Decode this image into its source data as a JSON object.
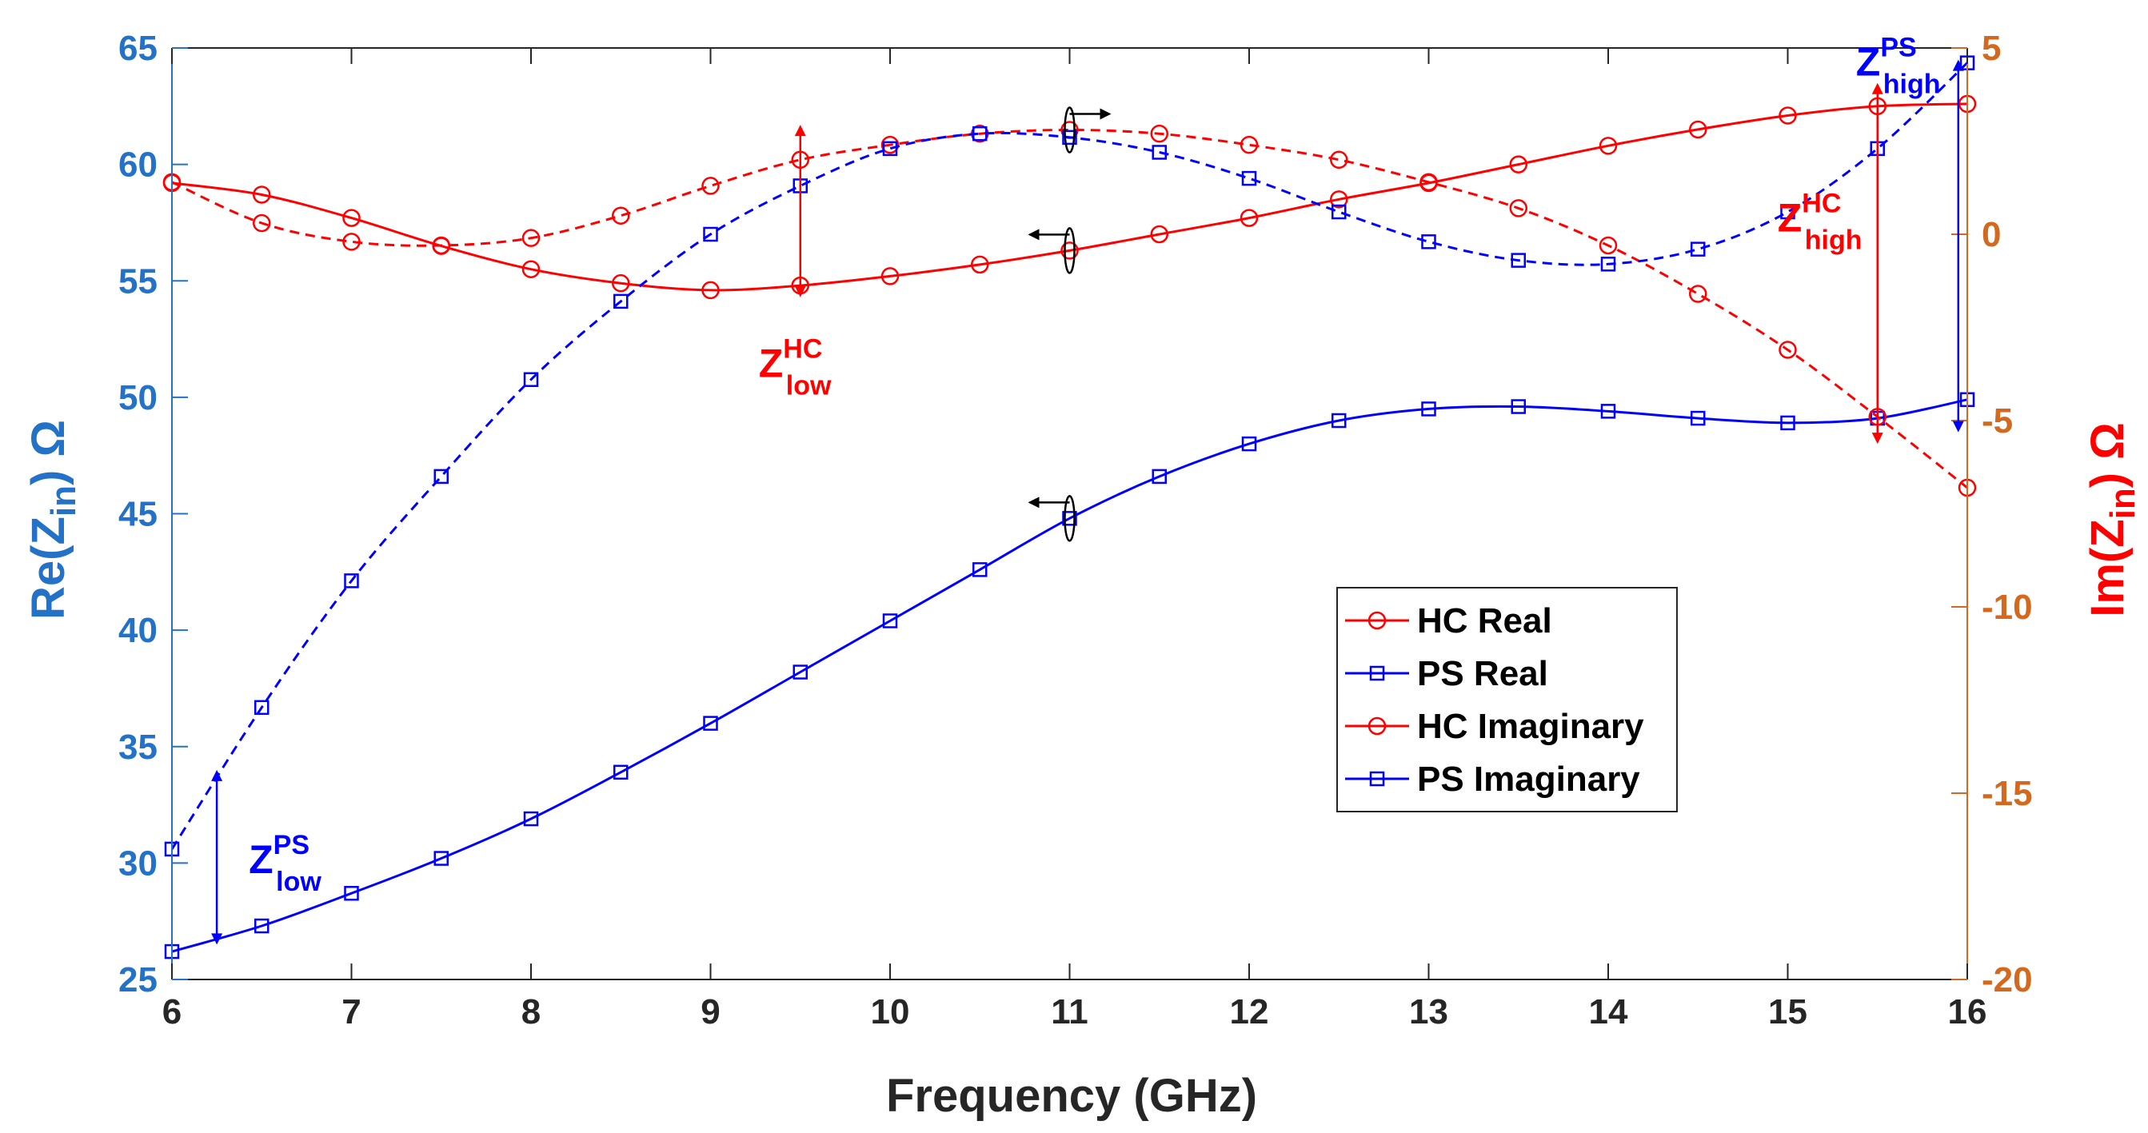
{
  "chart_data": {
    "type": "line",
    "xlabel": "Frequency (GHz)",
    "ylabel_left": {
      "base": "Re(Z",
      "sub": "in",
      "tail": ") Ω"
    },
    "ylabel_right": {
      "base": "Im(Z",
      "sub": "in",
      "tail": ") Ω"
    },
    "xlim": [
      6,
      16
    ],
    "ylim_left": [
      25,
      65
    ],
    "ylim_right": [
      -20,
      5
    ],
    "xticks": [
      6,
      7,
      8,
      9,
      10,
      11,
      12,
      13,
      14,
      15,
      16
    ],
    "yticks_left": [
      25,
      30,
      35,
      40,
      45,
      50,
      55,
      60,
      65
    ],
    "yticks_right": [
      -20,
      -15,
      -10,
      -5,
      0,
      5
    ],
    "x": [
      6,
      6.5,
      7,
      7.5,
      8,
      8.5,
      9,
      9.5,
      10,
      10.5,
      11,
      11.5,
      12,
      12.5,
      13,
      13.5,
      14,
      14.5,
      15,
      15.5,
      16
    ],
    "series": [
      {
        "name": "HC Real",
        "axis": "left",
        "color": "#ff0000",
        "marker": "circle",
        "dash": "solid",
        "values": [
          59.2,
          58.7,
          57.7,
          56.5,
          55.5,
          54.9,
          54.6,
          54.8,
          55.2,
          55.7,
          56.3,
          57.0,
          57.7,
          58.5,
          59.2,
          60.0,
          60.8,
          61.5,
          62.1,
          62.5,
          62.6
        ]
      },
      {
        "name": "PS Real",
        "axis": "left",
        "color": "#0000ff",
        "marker": "square",
        "dash": "solid",
        "values": [
          26.2,
          27.3,
          28.7,
          30.2,
          31.9,
          33.9,
          36.0,
          38.2,
          40.4,
          42.6,
          44.8,
          46.6,
          48.0,
          49.0,
          49.5,
          49.6,
          49.4,
          49.1,
          48.9,
          49.1,
          49.9
        ]
      },
      {
        "name": "HC Imaginary",
        "axis": "right",
        "color": "#ff0000",
        "marker": "circle",
        "dash": "dashed",
        "values": [
          1.4,
          0.3,
          -0.2,
          -0.3,
          -0.1,
          0.5,
          1.3,
          2.0,
          2.4,
          2.7,
          2.8,
          2.7,
          2.4,
          2.0,
          1.4,
          0.7,
          -0.3,
          -1.6,
          -3.1,
          -4.9,
          -6.8
        ]
      },
      {
        "name": "PS Imaginary",
        "axis": "right",
        "color": "#0000ff",
        "marker": "square",
        "dash": "dashed",
        "values": [
          -16.5,
          -12.7,
          -9.3,
          -6.5,
          -3.9,
          -1.8,
          0.0,
          1.3,
          2.3,
          2.7,
          2.6,
          2.2,
          1.5,
          0.6,
          -0.2,
          -0.7,
          -0.8,
          -0.4,
          0.6,
          2.3,
          4.6
        ]
      }
    ],
    "legend": {
      "position": "center-right",
      "entries": [
        "HC Real",
        "PS Real",
        "HC Imaginary",
        "PS Imaginary"
      ]
    },
    "annotations": [
      {
        "name": "z-low-ps",
        "base": "Z",
        "sup": "PS",
        "sub": "low",
        "color": "#0000ff",
        "x": 6.25,
        "y_from": 26.5,
        "y_to": 34.0,
        "axis": "left"
      },
      {
        "name": "z-low-hc",
        "base": "Z",
        "sup": "HC",
        "sub": "low",
        "color": "#ff0000",
        "x": 9.5,
        "y_from": 54.3,
        "y_to": 61.7,
        "axis": "left"
      },
      {
        "name": "z-high-hc",
        "base": "Z",
        "sup": "HC",
        "sub": "high",
        "color": "#ff0000",
        "x": 15.5,
        "y_from": 48.0,
        "y_to": 63.5,
        "axis": "left"
      },
      {
        "name": "z-high-ps",
        "base": "Z",
        "sup": "PS",
        "sub": "high",
        "color": "#0000ff",
        "x": 15.95,
        "y_from": 48.5,
        "y_to": 64.5,
        "axis": "left"
      }
    ]
  }
}
